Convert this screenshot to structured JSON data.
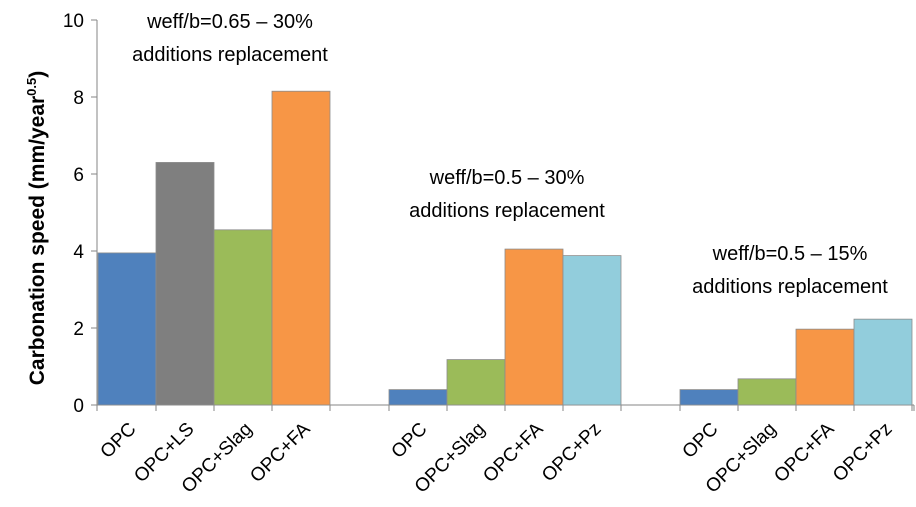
{
  "chart_data": {
    "type": "bar",
    "ylabel": "Carbonation speed (mm/year",
    "ylabel_sup": "0.5",
    "ylabel_close": ")",
    "ylim": [
      0,
      10
    ],
    "yticks": [
      0,
      2,
      4,
      6,
      8,
      10
    ],
    "grid": false,
    "groups": [
      {
        "annotation": [
          "weff/b=0.65 – 30%",
          "additions replacement"
        ],
        "bars": [
          {
            "label": "OPC",
            "value": 3.95,
            "color": "#4f81bd"
          },
          {
            "label": "OPC+LS",
            "value": 6.3,
            "color": "#7f7f7f"
          },
          {
            "label": "OPC+Slag",
            "value": 4.55,
            "color": "#9bbb59"
          },
          {
            "label": "OPC+FA",
            "value": 8.15,
            "color": "#f79646"
          }
        ]
      },
      {
        "annotation": [
          "weff/b=0.5 – 30%",
          "additions replacement"
        ],
        "bars": [
          {
            "label": "OPC",
            "value": 0.4,
            "color": "#4f81bd"
          },
          {
            "label": "OPC+Slag",
            "value": 1.18,
            "color": "#9bbb59"
          },
          {
            "label": "OPC+FA",
            "value": 4.05,
            "color": "#f79646"
          },
          {
            "label": "OPC+Pz",
            "value": 3.88,
            "color": "#92cddc"
          }
        ]
      },
      {
        "annotation": [
          "weff/b=0.5 – 15%",
          "additions replacement"
        ],
        "bars": [
          {
            "label": "OPC",
            "value": 0.4,
            "color": "#4f81bd"
          },
          {
            "label": "OPC+Slag",
            "value": 0.68,
            "color": "#9bbb59"
          },
          {
            "label": "OPC+FA",
            "value": 1.97,
            "color": "#f79646"
          },
          {
            "label": "OPC+Pz",
            "value": 2.23,
            "color": "#92cddc"
          }
        ]
      }
    ]
  }
}
